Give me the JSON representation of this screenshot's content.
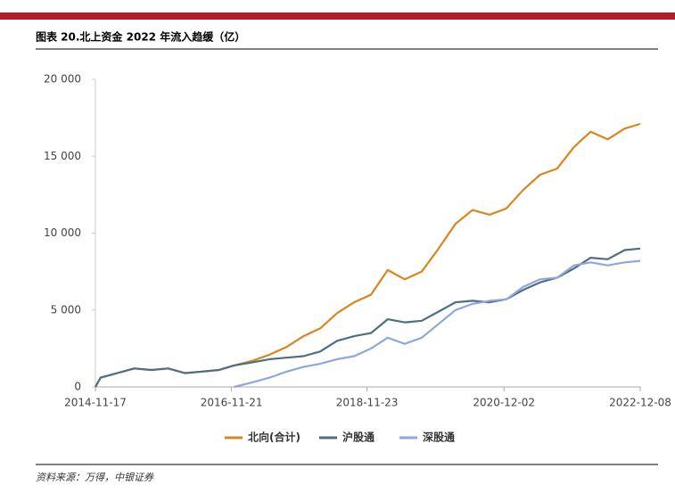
{
  "chart_data": {
    "type": "line",
    "title": "图表 20.北上资金 2022 年流入趋缓（亿）",
    "source": "资料来源：万得，中银证券",
    "x": [
      "2014-11-17",
      "2014-12-15",
      "2015-03-15",
      "2015-06-15",
      "2015-09-15",
      "2015-12-15",
      "2016-03-15",
      "2016-06-15",
      "2016-09-15",
      "2016-12-05",
      "2017-03-15",
      "2017-06-15",
      "2017-09-15",
      "2017-12-15",
      "2018-03-15",
      "2018-06-15",
      "2018-09-15",
      "2018-12-15",
      "2019-03-15",
      "2019-06-15",
      "2019-09-15",
      "2019-12-15",
      "2020-03-15",
      "2020-06-15",
      "2020-09-15",
      "2020-12-15",
      "2021-03-15",
      "2021-06-15",
      "2021-09-15",
      "2021-12-15",
      "2022-03-15",
      "2022-06-15",
      "2022-09-15",
      "2022-12-08"
    ],
    "series": [
      {
        "name": "北向(合计)",
        "color": "#d9861c",
        "values": [
          0,
          600,
          900,
          1200,
          1100,
          1200,
          900,
          1000,
          1100,
          1400,
          1700,
          2100,
          2600,
          3300,
          3800,
          4800,
          5500,
          6000,
          7600,
          7000,
          7500,
          9000,
          10600,
          11500,
          11200,
          11600,
          12800,
          13800,
          14200,
          15600,
          16600,
          16100,
          16800,
          17100
        ]
      },
      {
        "name": "沪股通",
        "color": "#4e6e84",
        "values": [
          0,
          600,
          900,
          1200,
          1100,
          1200,
          900,
          1000,
          1100,
          1400,
          1600,
          1800,
          1900,
          2000,
          2300,
          3000,
          3300,
          3500,
          4400,
          4200,
          4300,
          4900,
          5500,
          5600,
          5500,
          5700,
          6300,
          6800,
          7100,
          7700,
          8400,
          8300,
          8900,
          9000
        ]
      },
      {
        "name": "深股通",
        "color": "#8ea7dc",
        "values": [
          null,
          null,
          null,
          null,
          null,
          null,
          null,
          null,
          null,
          0,
          300,
          600,
          1000,
          1300,
          1500,
          1800,
          2000,
          2500,
          3200,
          2800,
          3200,
          4100,
          5000,
          5400,
          5600,
          5700,
          6500,
          7000,
          7100,
          7900,
          8100,
          7900,
          8100,
          8200
        ]
      }
    ],
    "xlim": [
      "2014-11-17",
      "2022-12-08"
    ],
    "xticks": [
      "2014-11-17",
      "2016-11-21",
      "2018-11-23",
      "2020-12-02",
      "2022-12-08"
    ],
    "ylim": [
      0,
      20000
    ],
    "yticks": [
      0,
      {
        "value": 5000,
        "label": "5 000"
      },
      {
        "value": 10000,
        "label": "10 000"
      },
      {
        "value": 15000,
        "label": "15 000"
      },
      {
        "value": 20000,
        "label": "20 000"
      }
    ],
    "grid": false,
    "legend": "bottom"
  }
}
